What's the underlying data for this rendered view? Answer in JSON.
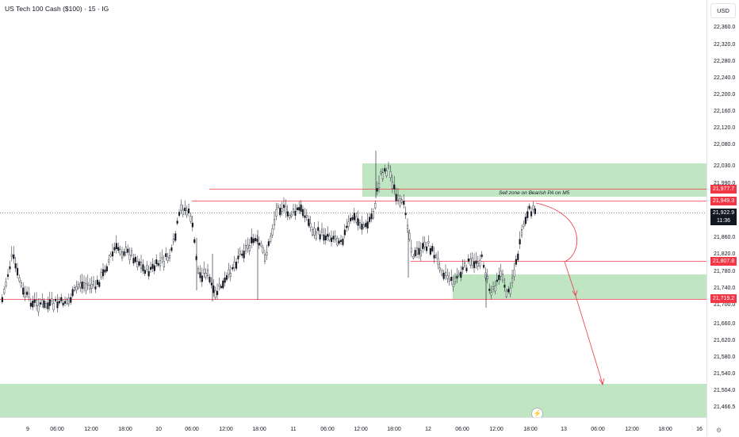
{
  "header": {
    "title": "US Tech 100 Cash ($100) · 15 · IG"
  },
  "axis": {
    "currency": "USD",
    "price_ticks": [
      "22,360.0",
      "22,320.0",
      "22,280.0",
      "22,240.0",
      "22,200.0",
      "22,160.0",
      "22,120.0",
      "22,080.0",
      "22,030.0",
      "21,990.0",
      "21,900.0",
      "21,860.0",
      "21,820.0",
      "21,780.0",
      "21,740.0",
      "21,700.0",
      "21,660.0",
      "21,620.0",
      "21,580.0",
      "21,540.0",
      "21,504.0",
      "21,466.5"
    ],
    "time_ticks": [
      "9",
      "06:00",
      "12:00",
      "18:00",
      "10",
      "06:00",
      "12:00",
      "18:00",
      "11",
      "06:00",
      "12:00",
      "18:00",
      "12",
      "06:00",
      "12:00",
      "18:00",
      "13",
      "06:00",
      "12:00",
      "18:00",
      "16"
    ]
  },
  "badges": {
    "level_1": "21,977.7",
    "level_2": "21,949.3",
    "current_price": "21,922.9",
    "countdown": "11:36",
    "level_3": "21,807.8",
    "level_4": "21,719.2"
  },
  "annotations": {
    "sell_zone": "Sell zone on Bearish PA on M5"
  },
  "colors": {
    "zone": "#bfe5c3",
    "level_line": "#f23645",
    "candle": "#131722"
  },
  "icons": {
    "settings": "gear-icon",
    "alert": "lightning-icon"
  }
}
